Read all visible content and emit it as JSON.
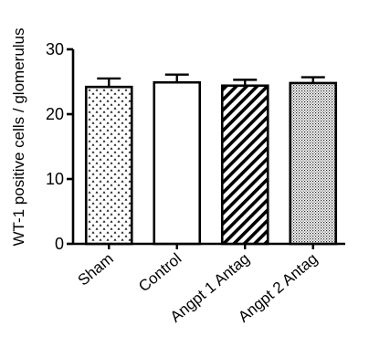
{
  "chart_data": {
    "type": "bar",
    "title": "",
    "xlabel": "",
    "ylabel": "WT-1 positive cells / glomerulus",
    "ylim": [
      0,
      30
    ],
    "yticks": [
      0,
      10,
      20,
      30
    ],
    "grid": false,
    "legend": "none",
    "categories": [
      "Sham",
      "Control",
      "Angpt 1 Antag",
      "Angpt 2 Antag"
    ],
    "values": [
      24.2,
      24.9,
      24.4,
      24.8
    ],
    "errors": [
      1.3,
      1.2,
      0.9,
      0.9
    ],
    "fill_patterns": [
      "triangle-dots",
      "solid-white",
      "diagonal-stripes",
      "fine-dots"
    ],
    "colors": {
      "bar_stroke": "#000000",
      "fill": "#ffffff",
      "pattern": "#000000"
    }
  }
}
